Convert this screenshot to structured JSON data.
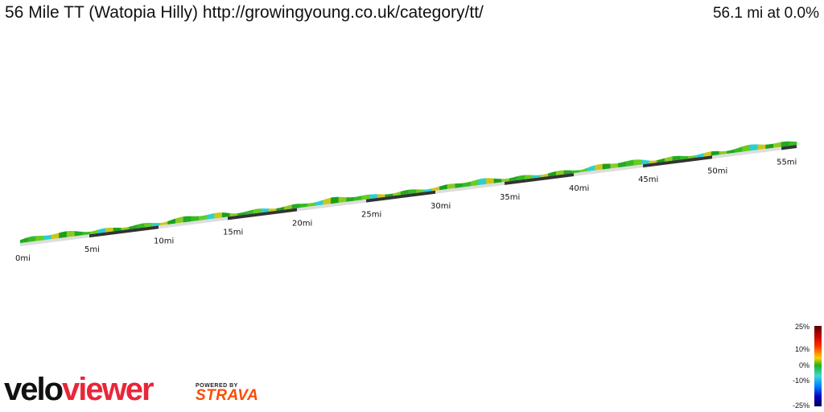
{
  "header": {
    "title": "56 Mile TT (Watopia Hilly) http://growingyoung.co.uk/category/tt/",
    "distance_readout": "56.1 mi at 0.0%"
  },
  "profile": {
    "total_distance_mi": 56.1,
    "mile_markers": [
      "0mi",
      "5mi",
      "10mi",
      "15mi",
      "20mi",
      "25mi",
      "30mi",
      "35mi",
      "40mi",
      "45mi",
      "50mi",
      "55mi"
    ]
  },
  "legend": {
    "labels": [
      "25%",
      "10%",
      "0%",
      "-10%",
      "-25%"
    ]
  },
  "branding": {
    "logo_part1": "velo",
    "logo_part2": "viewer",
    "powered_by": "POWERED BY",
    "strava": "STRAVA"
  },
  "colors": {
    "brand_red": "#e8273a",
    "strava_orange": "#fc4c02"
  }
}
